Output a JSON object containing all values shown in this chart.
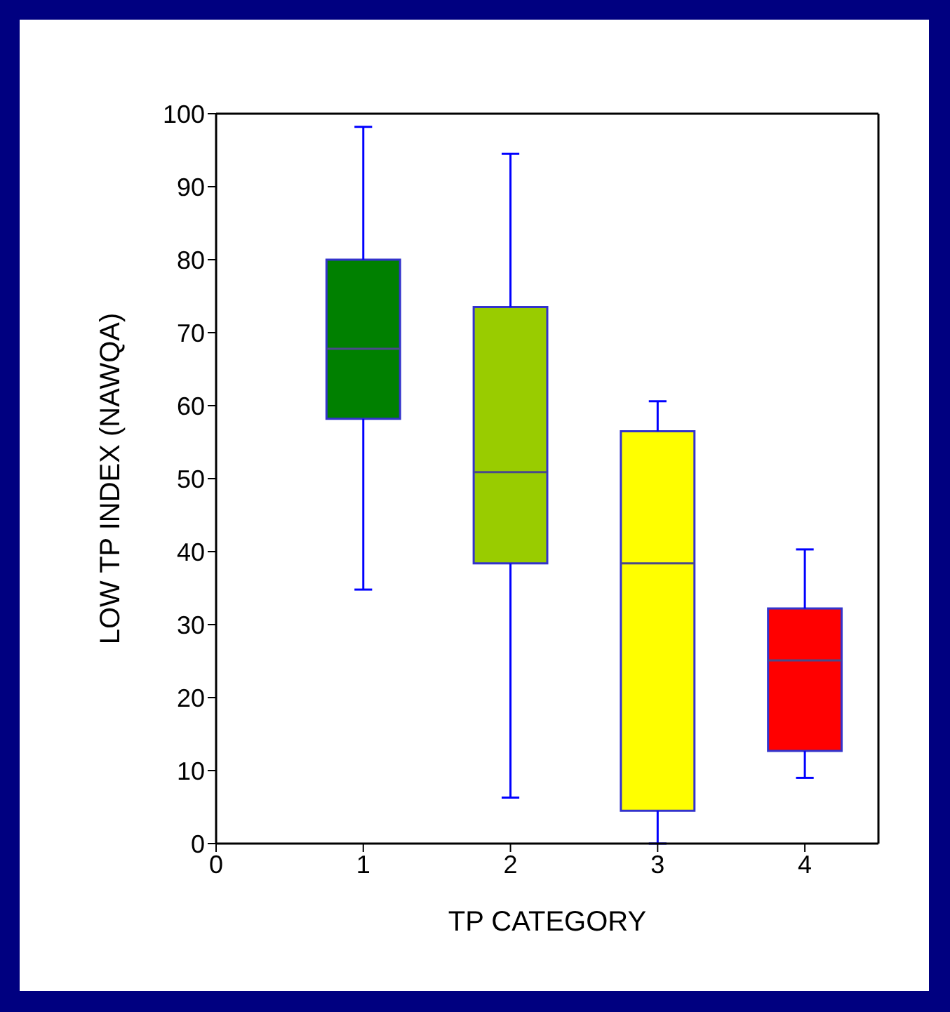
{
  "chart_data": {
    "type": "box",
    "xlabel": "TP CATEGORY",
    "ylabel": "LOW TP INDEX (NAWQA)",
    "x": [
      1,
      2,
      3,
      4
    ],
    "colors": [
      "#008000",
      "#99cc00",
      "#ffff00",
      "#ff0000"
    ],
    "boxes": [
      {
        "low": 34.8,
        "q1": 58.2,
        "median": 67.8,
        "q3": 80,
        "high": 98.2
      },
      {
        "low": 6.3,
        "q1": 38.4,
        "median": 50.9,
        "q3": 73.5,
        "high": 94.5
      },
      {
        "low": 0,
        "q1": 4.5,
        "median": 38.4,
        "q3": 56.5,
        "high": 60.6
      },
      {
        "low": 9,
        "q1": 12.7,
        "median": 25.1,
        "q3": 32.2,
        "high": 40.3
      }
    ],
    "xlim": [
      0,
      4.5
    ],
    "xticks": [
      0,
      1,
      2,
      3,
      4
    ],
    "ylim": [
      0,
      100
    ],
    "yticks": [
      0,
      10,
      20,
      30,
      40,
      50,
      60,
      70,
      80,
      90,
      100
    ]
  }
}
